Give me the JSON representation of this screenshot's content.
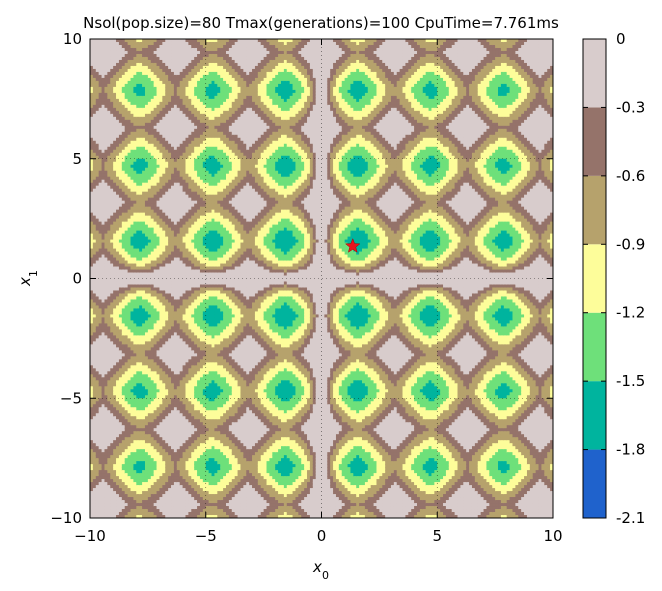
{
  "chart_data": {
    "type": "heatmap",
    "subtype": "filled-contour",
    "title": "Nsol(pop.size)=80  Tmax(generations)=100 CpuTime=7.761ms",
    "xlabel": "x",
    "xlabel_sub": "0",
    "ylabel": "x",
    "ylabel_sub": "1",
    "xlim": [
      -10,
      10
    ],
    "ylim": [
      -10,
      10
    ],
    "xticks": [
      {
        "value": -10,
        "label": "−10"
      },
      {
        "value": -5,
        "label": "−5"
      },
      {
        "value": 0,
        "label": "0"
      },
      {
        "value": 5,
        "label": "5"
      },
      {
        "value": 10,
        "label": "10"
      }
    ],
    "yticks": [
      {
        "value": 10,
        "label": "10"
      },
      {
        "value": 5,
        "label": "5"
      },
      {
        "value": 0,
        "label": "0"
      },
      {
        "value": -5,
        "label": "−5"
      },
      {
        "value": -10,
        "label": "−10"
      }
    ],
    "grid": true,
    "colorbar": {
      "levels": [
        -2.1,
        -1.8,
        -1.5,
        -1.2,
        -0.9,
        -0.6,
        -0.3,
        0
      ],
      "labels": [
        "-2.1",
        "-1.8",
        "-1.5",
        "-1.2",
        "-0.9",
        "-0.6",
        "-0.3",
        "0"
      ],
      "colors": [
        "#1f62cc",
        "#00b49e",
        "#6ee07a",
        "#fdfd9a",
        "#b6a26c",
        "#95736a",
        "#d8cccc"
      ]
    },
    "best_solution": {
      "x0": 1.35,
      "x1": 1.35,
      "marker": "star",
      "color": "#e8141e"
    }
  }
}
